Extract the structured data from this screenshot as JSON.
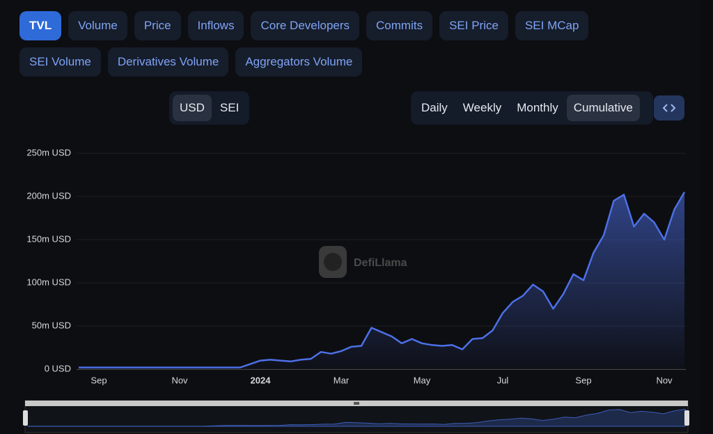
{
  "tabs": [
    "TVL",
    "Volume",
    "Price",
    "Inflows",
    "Core Developers",
    "Commits",
    "SEI Price",
    "SEI MCap",
    "SEI Volume",
    "Derivatives Volume",
    "Aggregators Volume"
  ],
  "active_tab": 0,
  "currency_toggle": [
    "USD",
    "SEI"
  ],
  "active_currency": 0,
  "intervals": [
    "Daily",
    "Weekly",
    "Monthly",
    "Cumulative"
  ],
  "active_interval": 3,
  "chart_data": {
    "type": "line",
    "watermark": "DefiLlama",
    "color": "#4d70e6",
    "grid": true,
    "categories": [
      null,
      null,
      "Sep",
      null,
      null,
      null,
      null,
      null,
      null,
      null,
      "Nov",
      null,
      null,
      null,
      null,
      null,
      null,
      null,
      "2024",
      null,
      null,
      null,
      null,
      null,
      null,
      null,
      "Mar",
      null,
      null,
      null,
      null,
      null,
      null,
      null,
      "May",
      null,
      null,
      null,
      null,
      null,
      null,
      null,
      "Jul",
      null,
      null,
      null,
      null,
      null,
      null,
      null,
      "Sep",
      null,
      null,
      null,
      null,
      null,
      null,
      null,
      "Nov",
      null,
      null
    ],
    "values": [
      2000000,
      2000000,
      2000000,
      2000000,
      2000000,
      2000000,
      2000000,
      2000000,
      2000000,
      2000000,
      2000000,
      2000000,
      2000000,
      2000000,
      2000000,
      2000000,
      2000000,
      6000000,
      10000000,
      11000000,
      10000000,
      9000000,
      11000000,
      12000000,
      20000000,
      18000000,
      21000000,
      26000000,
      27000000,
      48000000,
      43000000,
      38000000,
      30000000,
      35000000,
      30000000,
      28000000,
      27000000,
      28000000,
      23000000,
      35000000,
      36000000,
      45000000,
      65000000,
      78000000,
      85000000,
      98000000,
      90000000,
      70000000,
      87000000,
      110000000,
      103000000,
      135000000,
      155000000,
      195000000,
      202000000,
      165000000,
      180000000,
      170000000,
      150000000,
      185000000,
      205000000
    ],
    "ylim": [
      0,
      250000000
    ],
    "yticks": [
      {
        "value": 0,
        "label": "0 USD"
      },
      {
        "value": 50000000,
        "label": "50m USD"
      },
      {
        "value": 100000000,
        "label": "100m USD"
      },
      {
        "value": 150000000,
        "label": "150m USD"
      },
      {
        "value": 200000000,
        "label": "200m USD"
      },
      {
        "value": 250000000,
        "label": "250m USD"
      }
    ]
  }
}
